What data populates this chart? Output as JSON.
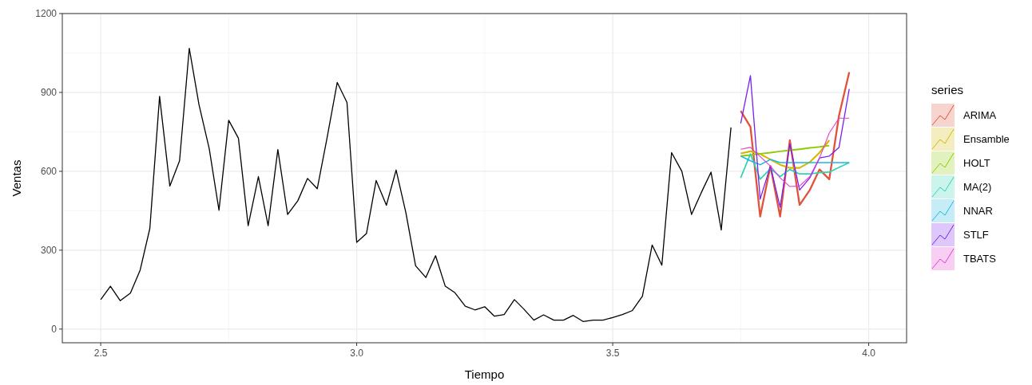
{
  "chart_data": {
    "type": "line",
    "xlabel": "Tiempo",
    "ylabel": "Ventas",
    "legend_title": "series",
    "legend": "right",
    "grid": true,
    "xlim": [
      2.425,
      4.074
    ],
    "xticks": [
      {
        "value": 2.5,
        "label": "2.5"
      },
      {
        "value": 3,
        "label": "3.0"
      },
      {
        "value": 3.5,
        "label": "3.5"
      },
      {
        "value": 4,
        "label": "4.0"
      }
    ],
    "ylim": [
      -52,
      1200
    ],
    "yticks": [
      0,
      300,
      600,
      900,
      1200
    ],
    "series": [
      {
        "color": "#000000",
        "x": [
          2.5,
          2.519,
          2.538,
          2.558,
          2.577,
          2.596,
          2.615,
          2.635,
          2.654,
          2.673,
          2.692,
          2.712,
          2.731,
          2.75,
          2.769,
          2.788,
          2.808,
          2.827,
          2.846,
          2.865,
          2.885,
          2.904,
          2.923,
          2.942,
          2.962,
          2.981,
          3,
          3.019,
          3.038,
          3.058,
          3.077,
          3.096,
          3.115,
          3.135,
          3.154,
          3.173,
          3.192,
          3.212,
          3.231,
          3.25,
          3.269,
          3.288,
          3.308,
          3.327,
          3.346,
          3.365,
          3.385,
          3.404,
          3.423,
          3.442,
          3.462,
          3.481,
          3.5,
          3.519,
          3.538,
          3.558,
          3.577,
          3.596,
          3.615,
          3.635,
          3.654,
          3.673,
          3.692,
          3.712,
          3.731
        ],
        "values": [
          112,
          163,
          108,
          137,
          224,
          383,
          885,
          544,
          640,
          1068,
          853,
          686,
          452,
          794,
          726,
          393,
          580,
          393,
          683,
          436,
          488,
          573,
          534,
          726,
          938,
          862,
          330,
          363,
          565,
          471,
          605,
          443,
          241,
          196,
          279,
          163,
          138,
          87,
          73,
          85,
          49,
          55,
          112,
          75,
          34,
          54,
          34,
          34,
          52,
          29,
          34,
          34,
          44,
          55,
          70,
          125,
          320,
          243,
          671,
          600,
          436,
          519,
          597,
          377,
          767
        ]
      },
      {
        "name": "ARIMA",
        "color": "#e0533a",
        "x": [
          3.75,
          3.769,
          3.788,
          3.808,
          3.827,
          3.846,
          3.865,
          3.885,
          3.904,
          3.923,
          3.942,
          3.962
        ],
        "values": [
          830,
          769,
          428,
          620,
          428,
          718,
          472,
          529,
          607,
          570,
          812,
          977
        ]
      },
      {
        "name": "Ensamble",
        "color": "#d4b800",
        "x": [
          3.75,
          3.769,
          3.788,
          3.808,
          3.827,
          3.846,
          3.865,
          3.885,
          3.904,
          3.923
        ],
        "values": [
          668,
          676,
          666,
          645,
          625,
          613,
          613,
          635,
          671,
          718
        ]
      },
      {
        "name": "HOLT",
        "color": "#8ccc00",
        "x": [
          3.75,
          3.769,
          3.788,
          3.808,
          3.827,
          3.846,
          3.865,
          3.885,
          3.904,
          3.923
        ],
        "values": [
          658,
          662,
          667,
          671,
          676,
          680,
          684,
          689,
          693,
          698
        ]
      },
      {
        "name": "MA(2)",
        "color": "#2ed3b8",
        "x": [
          3.75,
          3.769,
          3.788,
          3.808,
          3.827,
          3.846,
          3.865,
          3.885,
          3.904,
          3.923,
          3.942,
          3.962
        ],
        "values": [
          575,
          666,
          570,
          610,
          580,
          607,
          590,
          590,
          595,
          597,
          615,
          633
        ]
      },
      {
        "name": "NNAR",
        "color": "#1cb8e0",
        "x": [
          3.75,
          3.769,
          3.788,
          3.808,
          3.827,
          3.846,
          3.865,
          3.885,
          3.904,
          3.923,
          3.942,
          3.962
        ],
        "values": [
          658,
          640,
          625,
          645,
          633,
          633,
          633,
          633,
          633,
          633,
          633,
          633
        ]
      },
      {
        "name": "STLF",
        "color": "#7a1ff0",
        "x": [
          3.75,
          3.769,
          3.788,
          3.808,
          3.827,
          3.846,
          3.865,
          3.885,
          3.904,
          3.923,
          3.942,
          3.962
        ],
        "values": [
          782,
          964,
          494,
          620,
          464,
          704,
          529,
          575,
          651,
          658,
          691,
          913
        ]
      },
      {
        "name": "TBATS",
        "color": "#e23fd0",
        "x": [
          3.75,
          3.769,
          3.788,
          3.808,
          3.827,
          3.846,
          3.865,
          3.885,
          3.904,
          3.923,
          3.942,
          3.962
        ],
        "values": [
          684,
          691,
          656,
          620,
          575,
          542,
          544,
          580,
          651,
          746,
          802,
          802
        ]
      }
    ]
  }
}
